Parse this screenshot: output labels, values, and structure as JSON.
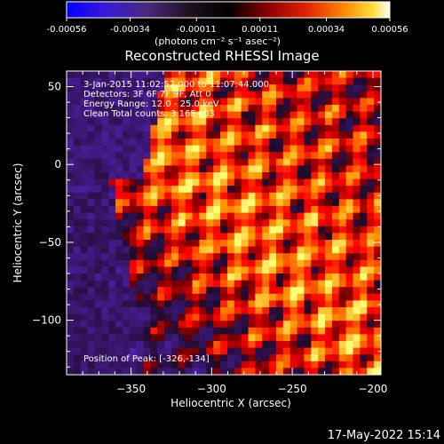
{
  "colorbar": {
    "tick_labels": [
      "-0.00056",
      "-0.00034",
      "-0.00011",
      "0.00011",
      "0.00034",
      "0.00056"
    ],
    "units_label": "(photons cm⁻² s⁻¹ asec⁻²)",
    "range": [
      -0.00056,
      0.00056
    ]
  },
  "chart_data": {
    "type": "heatmap",
    "title": "Reconstructed RHESSI Image",
    "xlabel": "Heliocentric X (arcsec)",
    "ylabel": "Heliocentric Y (arcsec)",
    "xlim": [
      -390,
      -195
    ],
    "ylim": [
      -135,
      60
    ],
    "xticks": [
      -350,
      -300,
      -250,
      -200
    ],
    "yticks": [
      50,
      0,
      -50,
      -100
    ],
    "xtick_labels": [
      "−350",
      "−300",
      "−250",
      "−200"
    ],
    "ytick_labels": [
      "50",
      "0",
      "−50",
      "−100"
    ],
    "annotations": [
      "3-Jan-2015 11:02:52.000 to 11:07:44.000",
      "Detectors: 3F 6F 7F 9F, Att 0",
      "Energy Range: 12.0 - 25.0 keV",
      "Clean     Total counts: 3.16E+03"
    ],
    "peak_label": "Position of Peak: [-326,-134]",
    "peak": [
      -326,
      -134
    ]
  },
  "timestamp": "17-May-2022 15:14"
}
